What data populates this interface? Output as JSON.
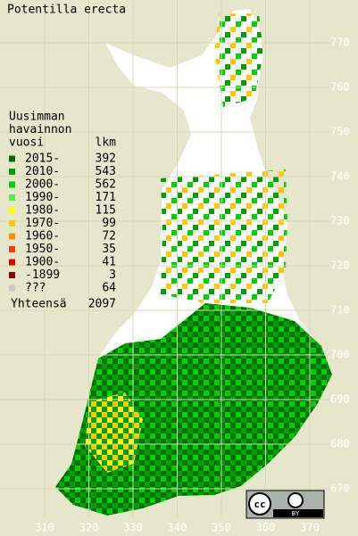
{
  "title": "Potentilla erecta",
  "legend": {
    "header": [
      "Uusimman",
      "havainnon",
      "vuosi"
    ],
    "count_header": "lkm",
    "items": [
      {
        "label": "2015-",
        "count": 392,
        "color": "#006e00"
      },
      {
        "label": "2010-",
        "count": 543,
        "color": "#00a000"
      },
      {
        "label": "2000-",
        "count": 562,
        "color": "#00d200"
      },
      {
        "label": "1990-",
        "count": 171,
        "color": "#50f050"
      },
      {
        "label": "1980-",
        "count": 115,
        "color": "#ffff00"
      },
      {
        "label": "1970-",
        "count": 99,
        "color": "#ffc800"
      },
      {
        "label": "1960-",
        "count": 72,
        "color": "#ff8c00"
      },
      {
        "label": "1950-",
        "count": 35,
        "color": "#ff3c00"
      },
      {
        "label": "1900-",
        "count": 41,
        "color": "#dc0000"
      },
      {
        "label": "-1899",
        "count": 3,
        "color": "#8c0000"
      },
      {
        "label": "???",
        "count": 64,
        "color": "#c8c8c8"
      }
    ],
    "total_label": "Yhteensä",
    "total": 2097
  },
  "y_axis": {
    "labels": [
      770,
      760,
      750,
      740,
      730,
      720,
      710,
      700,
      690,
      680,
      670
    ]
  },
  "x_axis": {
    "labels": [
      310,
      320,
      330,
      340,
      350,
      360,
      370
    ]
  },
  "license": {
    "cc": "cc",
    "by": "BY"
  }
}
